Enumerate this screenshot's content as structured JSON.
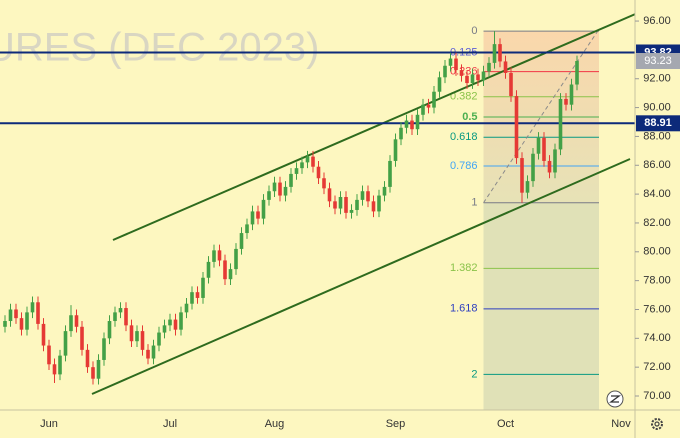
{
  "chart_data": {
    "type": "candlestick",
    "watermark": "URES (DEC 2023)",
    "categories": [
      null,
      null,
      null,
      null,
      null,
      null,
      null,
      null,
      "Jun",
      null,
      null,
      null,
      null,
      null,
      null,
      null,
      null,
      null,
      null,
      null,
      null,
      null,
      null,
      null,
      null,
      null,
      null,
      null,
      null,
      null,
      "Jul",
      null,
      null,
      null,
      null,
      null,
      null,
      null,
      null,
      null,
      null,
      null,
      null,
      null,
      null,
      null,
      null,
      null,
      null,
      "Aug",
      null,
      null,
      null,
      null,
      null,
      null,
      null,
      null,
      null,
      null,
      null,
      null,
      null,
      null,
      null,
      null,
      null,
      null,
      null,
      null,
      null,
      "Sep",
      null,
      null,
      null,
      null,
      null,
      null,
      null,
      null,
      null,
      null,
      null,
      null,
      null,
      null,
      null,
      null,
      null,
      null,
      null,
      "Oct",
      null,
      null,
      null,
      null,
      null,
      null,
      null,
      null,
      null,
      null,
      null,
      null,
      null,
      null,
      null,
      null,
      null,
      null,
      null,
      null,
      "Nov"
    ],
    "open": [
      74.8,
      75.2,
      76.0,
      75.4,
      74.6,
      75.8,
      76.5,
      75.0,
      73.5,
      72.2,
      71.5,
      72.8,
      74.5,
      75.6,
      74.8,
      73.2,
      72.0,
      71.2,
      72.5,
      74.0,
      75.2,
      75.8,
      76.1,
      74.9,
      73.8,
      74.5,
      73.2,
      72.6,
      73.5,
      74.4,
      74.9,
      75.3,
      74.6,
      75.8,
      76.4,
      77.2,
      76.8,
      78.2,
      79.3,
      80.1,
      79.4,
      78.1,
      78.8,
      80.2,
      81.3,
      81.9,
      82.8,
      82.3,
      83.6,
      84.2,
      84.8,
      83.9,
      84.5,
      85.4,
      85.8,
      86.2,
      86.6,
      85.9,
      85.1,
      84.4,
      83.5,
      83.0,
      83.8,
      82.7,
      82.9,
      83.6,
      84.2,
      83.5,
      82.8,
      83.9,
      84.5,
      86.3,
      87.8,
      88.6,
      89.1,
      88.5,
      89.5,
      90.2,
      90.0,
      91.1,
      92.1,
      92.9,
      93.4,
      92.6,
      92.2,
      91.7,
      92.3,
      91.9,
      92.5,
      93.1,
      94.4,
      93.2,
      92.4,
      90.8,
      86.5,
      84.1,
      84.9,
      86.8,
      87.9,
      86.3,
      85.5,
      87.1,
      90.6,
      90.2,
      91.6,
      null,
      null,
      null,
      null,
      null,
      null,
      null,
      null
    ],
    "high": [
      75.6,
      76.4,
      76.4,
      75.8,
      76.2,
      76.9,
      76.9,
      75.4,
      73.9,
      72.6,
      73.2,
      74.9,
      76.3,
      76.0,
      75.2,
      73.6,
      72.4,
      72.9,
      74.4,
      75.6,
      76.2,
      76.5,
      76.5,
      75.3,
      74.9,
      74.9,
      73.6,
      73.9,
      74.8,
      75.3,
      75.7,
      75.7,
      76.2,
      76.8,
      77.6,
      77.6,
      78.6,
      79.7,
      80.5,
      80.5,
      79.8,
      79.2,
      80.6,
      81.7,
      82.3,
      83.2,
      83.2,
      84.0,
      84.6,
      85.2,
      85.2,
      84.9,
      85.8,
      86.2,
      86.6,
      87.0,
      87.0,
      86.3,
      85.5,
      84.8,
      83.9,
      84.2,
      84.2,
      83.3,
      84.0,
      84.6,
      84.6,
      83.9,
      84.3,
      84.9,
      86.7,
      88.2,
      89.0,
      89.5,
      89.5,
      89.9,
      90.6,
      90.6,
      91.5,
      92.5,
      93.3,
      93.8,
      93.8,
      93.0,
      92.6,
      92.7,
      92.7,
      92.9,
      93.5,
      95.3,
      94.8,
      93.6,
      92.8,
      91.2,
      86.9,
      85.3,
      87.2,
      88.3,
      88.3,
      86.7,
      87.5,
      91.0,
      91.0,
      92.0,
      93.6,
      null,
      null,
      null,
      null,
      null,
      null,
      null,
      null
    ],
    "low": [
      74.4,
      74.8,
      75.0,
      74.2,
      74.2,
      75.4,
      74.6,
      73.1,
      71.8,
      70.9,
      71.1,
      72.4,
      74.1,
      74.4,
      72.8,
      71.6,
      70.8,
      70.8,
      72.1,
      73.6,
      74.8,
      75.4,
      74.5,
      73.4,
      73.4,
      72.8,
      72.2,
      72.2,
      73.1,
      74.0,
      74.5,
      74.2,
      74.2,
      75.4,
      76.0,
      76.4,
      76.4,
      77.8,
      78.9,
      79.0,
      77.7,
      77.7,
      78.4,
      79.8,
      80.9,
      81.5,
      81.9,
      81.9,
      83.2,
      83.8,
      83.5,
      83.5,
      84.1,
      85.0,
      85.4,
      85.8,
      85.5,
      84.7,
      84.0,
      83.1,
      82.6,
      82.6,
      82.3,
      82.3,
      82.5,
      83.2,
      83.1,
      82.4,
      82.4,
      83.5,
      84.1,
      85.9,
      87.4,
      88.2,
      88.1,
      88.1,
      89.1,
      89.6,
      89.6,
      90.7,
      91.7,
      92.5,
      92.2,
      91.8,
      91.3,
      91.3,
      91.5,
      91.5,
      92.1,
      92.7,
      92.8,
      92.0,
      90.4,
      86.1,
      83.4,
      83.7,
      84.5,
      86.4,
      85.9,
      85.1,
      85.1,
      86.7,
      89.8,
      89.8,
      91.2,
      null,
      null,
      null,
      null,
      null,
      null,
      null,
      null
    ],
    "close": [
      75.2,
      76.0,
      75.4,
      74.6,
      75.8,
      76.5,
      75.0,
      73.5,
      72.2,
      71.5,
      72.8,
      74.5,
      75.6,
      74.8,
      73.2,
      72.0,
      71.2,
      72.5,
      74.0,
      75.2,
      75.8,
      76.1,
      74.9,
      73.8,
      74.5,
      73.2,
      72.6,
      73.5,
      74.4,
      74.9,
      75.3,
      74.6,
      75.8,
      76.4,
      77.2,
      76.8,
      78.2,
      79.3,
      80.1,
      79.4,
      78.1,
      78.8,
      80.2,
      81.3,
      81.9,
      82.8,
      82.3,
      83.6,
      84.2,
      84.8,
      83.9,
      84.5,
      85.4,
      85.8,
      86.2,
      86.6,
      85.9,
      85.1,
      84.4,
      83.5,
      83.0,
      83.8,
      82.7,
      82.9,
      83.6,
      84.2,
      83.5,
      82.8,
      83.9,
      84.5,
      86.3,
      87.8,
      88.6,
      89.1,
      88.5,
      89.5,
      90.2,
      90.0,
      91.1,
      92.1,
      92.9,
      93.4,
      92.6,
      92.2,
      91.7,
      92.3,
      91.9,
      92.5,
      93.1,
      94.4,
      93.2,
      92.4,
      90.8,
      86.5,
      84.1,
      84.9,
      86.8,
      87.9,
      86.3,
      85.5,
      87.1,
      90.6,
      90.2,
      91.6,
      93.23,
      null,
      null,
      null,
      null,
      null,
      null,
      null,
      null
    ],
    "up_color": "#43a047",
    "down_color": "#e53935",
    "ylim": [
      69.03,
      97.46
    ],
    "yticks": [
      {
        "value": 96,
        "label": "96.00"
      },
      {
        "value": 92,
        "label": "92.00"
      },
      {
        "value": 90,
        "label": "90.00"
      },
      {
        "value": 88,
        "label": "88.00"
      },
      {
        "value": 86,
        "label": "86.00"
      },
      {
        "value": 84,
        "label": "84.00"
      },
      {
        "value": 82,
        "label": "82.00"
      },
      {
        "value": 80,
        "label": "80.00"
      },
      {
        "value": 78,
        "label": "78.00"
      },
      {
        "value": 76,
        "label": "76.00"
      },
      {
        "value": 74,
        "label": "74.00"
      },
      {
        "value": 72,
        "label": "72.00"
      },
      {
        "value": 70,
        "label": "70.00"
      }
    ],
    "price_lines": [
      {
        "value": 93.82,
        "color": "#0d2a7a"
      },
      {
        "value": 88.91,
        "color": "#0d2a7a"
      }
    ],
    "last_price_color": "#a5a8b0",
    "fib": {
      "levels": [
        0,
        0.125,
        0.236,
        0.382,
        0.5,
        0.618,
        0.786,
        1,
        1.382,
        1.618,
        2
      ],
      "colors": [
        "#787b86",
        "#5c5fd6",
        "#f23645",
        "#8bc34a",
        "#4caf50",
        "#089981",
        "#42a5f5",
        "#787b86",
        "#8bc34a",
        "#2e3fbf",
        "#089981"
      ]
    }
  }
}
